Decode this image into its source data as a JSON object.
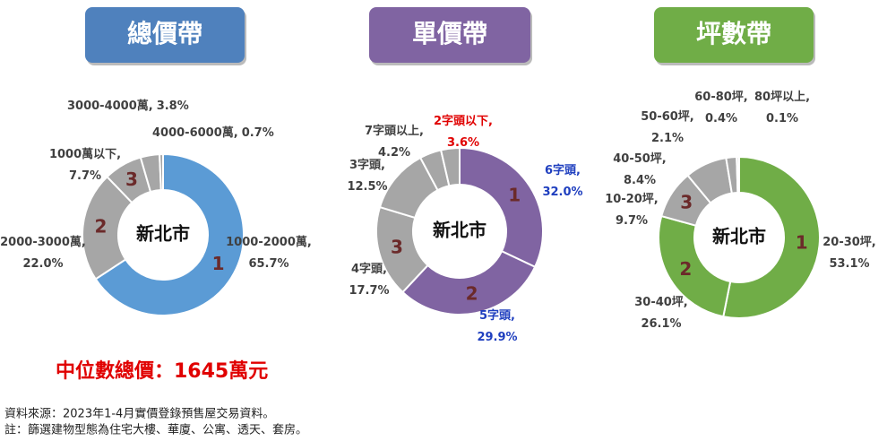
{
  "chart_data": [
    {
      "type": "pie",
      "title": "總價帶",
      "title_color": "#4f81bd",
      "center_label": "新北市",
      "categories": [
        "1000-2000萬,",
        "2000-3000萬,",
        "1000萬以下,",
        "3000-4000萬,",
        "4000-6000萬,"
      ],
      "values": [
        65.7,
        22.0,
        7.7,
        3.8,
        0.7
      ],
      "value_labels": [
        "65.7%",
        "22.0%",
        "7.7%",
        "3.8%",
        "0.7%"
      ],
      "rank_labels": [
        "1",
        "2",
        "3",
        null,
        null
      ],
      "colors": [
        "#5b9bd5",
        "#a6a6a6",
        "#a6a6a6",
        "#a6a6a6",
        "#a6a6a6"
      ],
      "label_colors": [
        "#404040",
        "#404040",
        "#404040",
        "#404040",
        "#404040"
      ]
    },
    {
      "type": "pie",
      "title": "單價帶",
      "title_color": "#8064a2",
      "center_label": "新北市",
      "categories": [
        "6字頭,",
        "5字頭,",
        "4字頭,",
        "3字頭,",
        "7字頭以上,",
        "2字頭以下,"
      ],
      "values": [
        32.0,
        29.9,
        17.7,
        12.5,
        4.2,
        3.6
      ],
      "value_labels": [
        "32.0%",
        "29.9%",
        "17.7%",
        "12.5%",
        "4.2%",
        "3.6%"
      ],
      "rank_labels": [
        "1",
        "2",
        "3",
        null,
        null,
        null
      ],
      "colors": [
        "#8064a2",
        "#8064a2",
        "#a6a6a6",
        "#a6a6a6",
        "#a6a6a6",
        "#a6a6a6"
      ],
      "label_colors": [
        "#1f3fbf",
        "#1f3fbf",
        "#404040",
        "#404040",
        "#404040",
        "#e00000"
      ]
    },
    {
      "type": "pie",
      "title": "坪數帶",
      "title_color": "#70ad47",
      "center_label": "新北市",
      "categories": [
        "20-30坪,",
        "30-40坪,",
        "10-20坪,",
        "40-50坪,",
        "50-60坪,",
        "60-80坪,",
        "80坪以上,"
      ],
      "values": [
        53.1,
        26.1,
        9.7,
        8.4,
        2.1,
        0.4,
        0.1
      ],
      "value_labels": [
        "53.1%",
        "26.1%",
        "9.7%",
        "8.4%",
        "2.1%",
        "0.4%",
        "0.1%"
      ],
      "rank_labels": [
        "1",
        "2",
        "3",
        null,
        null,
        null,
        null
      ],
      "colors": [
        "#70ad47",
        "#70ad47",
        "#a6a6a6",
        "#a6a6a6",
        "#a6a6a6",
        "#a6a6a6",
        "#a6a6a6"
      ],
      "label_colors": [
        "#404040",
        "#404040",
        "#404040",
        "#404040",
        "#404040",
        "#404040",
        "#404040"
      ]
    }
  ],
  "median_note": "中位數總價：1645萬元",
  "notes": [
    "資料來源：2023年1-4月實價登錄預售屋交易資料。",
    "註：篩選建物型態為住宅大樓、華廈、公寓、透天、套房。"
  ]
}
